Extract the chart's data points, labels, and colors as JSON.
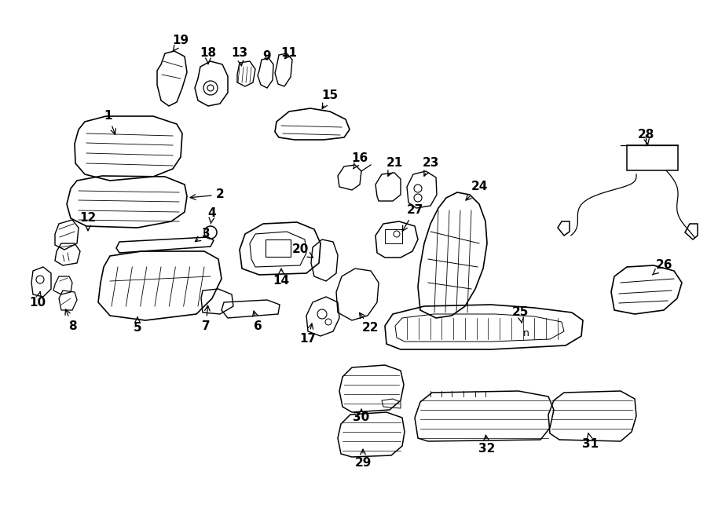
{
  "bg": "#ffffff",
  "lc": "#000000",
  "fig_w": 9.0,
  "fig_h": 6.61,
  "dpi": 100,
  "lw": 1.1
}
